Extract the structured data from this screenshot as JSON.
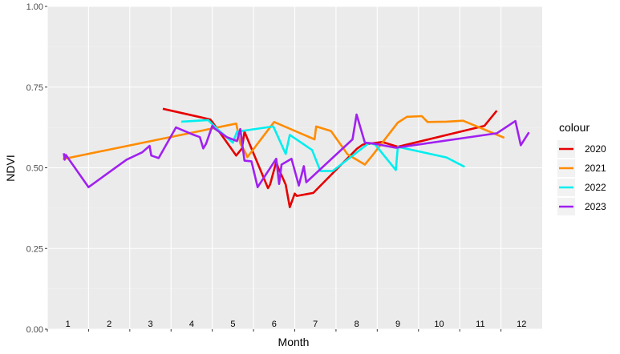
{
  "chart_data": {
    "type": "line",
    "xlabel": "Month",
    "ylabel": "NDVI",
    "ylim": [
      0,
      1
    ],
    "xlim": [
      0.5,
      12.5
    ],
    "grid": true,
    "legend": {
      "title": "colour",
      "position": "right"
    },
    "month_labels": [
      "1",
      "2",
      "3",
      "4",
      "5",
      "6",
      "7",
      "8",
      "9",
      "10",
      "11",
      "12"
    ],
    "yticks": [
      {
        "value": 0.0,
        "label": "0.00"
      },
      {
        "value": 0.25,
        "label": "0.25"
      },
      {
        "value": 0.5,
        "label": "0.50"
      },
      {
        "value": 0.75,
        "label": "0.75"
      },
      {
        "value": 1.0,
        "label": "1.00"
      }
    ],
    "series": [
      {
        "name": "2020",
        "color": "#e60000",
        "points": [
          [
            3.3,
            0.683
          ],
          [
            4.45,
            0.65
          ],
          [
            4.5,
            0.642
          ],
          [
            5.08,
            0.538
          ],
          [
            5.22,
            0.56
          ],
          [
            5.28,
            0.612
          ],
          [
            5.85,
            0.437
          ],
          [
            5.9,
            0.448
          ],
          [
            6.05,
            0.518
          ],
          [
            6.1,
            0.5
          ],
          [
            6.28,
            0.448
          ],
          [
            6.38,
            0.378
          ],
          [
            6.5,
            0.42
          ],
          [
            6.55,
            0.413
          ],
          [
            6.95,
            0.422
          ],
          [
            8.0,
            0.558
          ],
          [
            8.15,
            0.572
          ],
          [
            8.62,
            0.58
          ],
          [
            9.0,
            0.565
          ],
          [
            11.1,
            0.63
          ],
          [
            11.4,
            0.677
          ]
        ]
      },
      {
        "name": "2021",
        "color": "#ff8c00",
        "points": [
          [
            0.88,
            0.527
          ],
          [
            5.08,
            0.637
          ],
          [
            5.18,
            0.575
          ],
          [
            5.3,
            0.548
          ],
          [
            5.35,
            0.533
          ],
          [
            6.0,
            0.642
          ],
          [
            6.98,
            0.588
          ],
          [
            7.02,
            0.628
          ],
          [
            7.38,
            0.614
          ],
          [
            7.78,
            0.542
          ],
          [
            8.2,
            0.51
          ],
          [
            8.38,
            0.538
          ],
          [
            9.0,
            0.64
          ],
          [
            9.22,
            0.658
          ],
          [
            9.58,
            0.66
          ],
          [
            9.72,
            0.642
          ],
          [
            10.18,
            0.643
          ],
          [
            10.58,
            0.646
          ],
          [
            11.58,
            0.593
          ]
        ]
      },
      {
        "name": "2022",
        "color": "#00eeee",
        "points": [
          [
            3.75,
            0.643
          ],
          [
            4.4,
            0.648
          ],
          [
            4.62,
            0.62
          ],
          [
            5.0,
            0.578
          ],
          [
            5.1,
            0.612
          ],
          [
            5.98,
            0.628
          ],
          [
            6.28,
            0.543
          ],
          [
            6.38,
            0.602
          ],
          [
            6.92,
            0.555
          ],
          [
            7.12,
            0.49
          ],
          [
            7.42,
            0.49
          ],
          [
            8.3,
            0.577
          ],
          [
            8.45,
            0.572
          ],
          [
            8.95,
            0.493
          ],
          [
            9.0,
            0.565
          ],
          [
            10.18,
            0.532
          ],
          [
            10.62,
            0.503
          ]
        ]
      },
      {
        "name": "2023",
        "color": "#a020f0",
        "points": [
          [
            0.9,
            0.545
          ],
          [
            0.92,
            0.525
          ],
          [
            0.95,
            0.54
          ],
          [
            1.5,
            0.44
          ],
          [
            2.42,
            0.525
          ],
          [
            2.8,
            0.548
          ],
          [
            2.98,
            0.568
          ],
          [
            3.02,
            0.538
          ],
          [
            3.2,
            0.53
          ],
          [
            3.62,
            0.625
          ],
          [
            4.05,
            0.602
          ],
          [
            4.2,
            0.595
          ],
          [
            4.28,
            0.56
          ],
          [
            4.35,
            0.575
          ],
          [
            4.5,
            0.63
          ],
          [
            4.55,
            0.622
          ],
          [
            4.85,
            0.595
          ],
          [
            5.1,
            0.583
          ],
          [
            5.18,
            0.62
          ],
          [
            5.28,
            0.522
          ],
          [
            5.45,
            0.52
          ],
          [
            5.6,
            0.44
          ],
          [
            6.05,
            0.528
          ],
          [
            6.12,
            0.45
          ],
          [
            6.18,
            0.51
          ],
          [
            6.42,
            0.528
          ],
          [
            6.6,
            0.445
          ],
          [
            6.72,
            0.505
          ],
          [
            6.78,
            0.455
          ],
          [
            7.9,
            0.588
          ],
          [
            8.0,
            0.665
          ],
          [
            8.2,
            0.578
          ],
          [
            8.42,
            0.575
          ],
          [
            8.95,
            0.562
          ],
          [
            11.4,
            0.607
          ],
          [
            11.85,
            0.645
          ],
          [
            11.98,
            0.57
          ],
          [
            12.18,
            0.61
          ]
        ]
      }
    ]
  }
}
